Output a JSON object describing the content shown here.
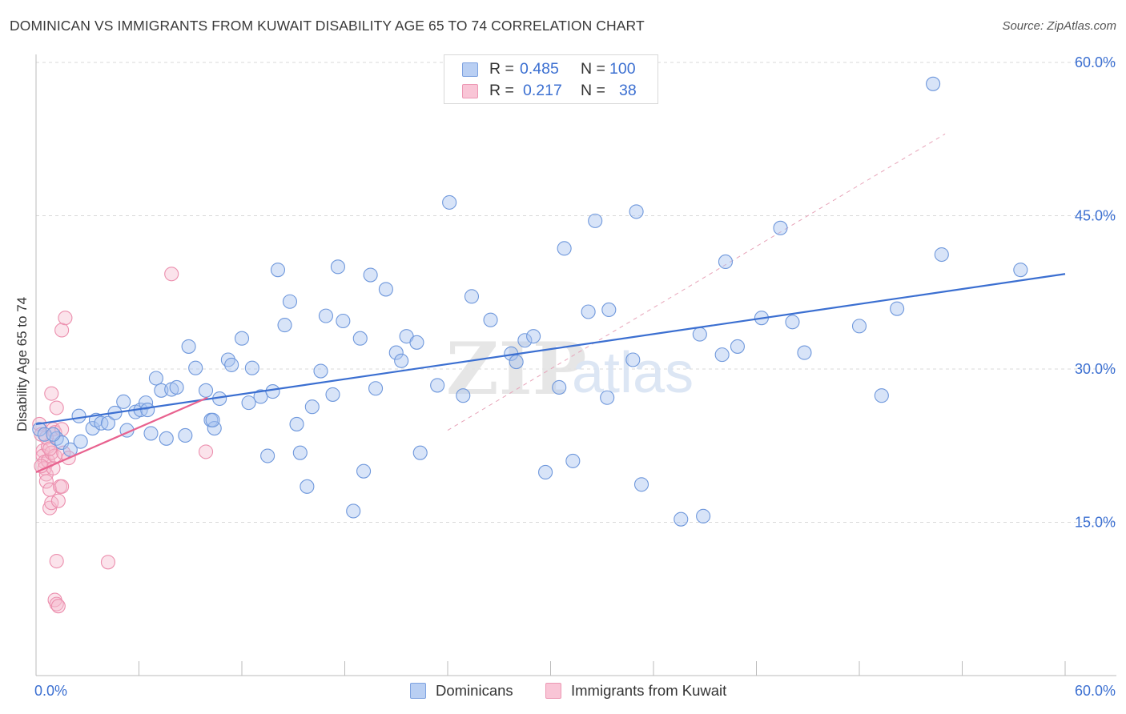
{
  "header": {
    "title": "DOMINICAN VS IMMIGRANTS FROM KUWAIT DISABILITY AGE 65 TO 74 CORRELATION CHART",
    "source": "Source: ZipAtlas.com"
  },
  "legend": {
    "rows": [
      {
        "r_label": "R =",
        "r_value": "0.485",
        "n_label": "N =",
        "n_value": "100"
      },
      {
        "r_label": "R =",
        "r_value": "0.217",
        "n_label": "N =",
        "n_value": "38"
      }
    ]
  },
  "bottom_legend": [
    {
      "label": "Dominicans"
    },
    {
      "label": "Immigrants from Kuwait"
    }
  ],
  "watermark": {
    "zip": "ZIP",
    "atlas": "atlas"
  },
  "colors": {
    "blue": "#3b6fd1",
    "blue_fill": "#a9c4ef",
    "pink": "#e8628f",
    "pink_fill": "#f6b8cc",
    "grid": "#d9d9d9",
    "axis_label": "#3b6fd1"
  },
  "chart_data": {
    "type": "scatter",
    "title": "DOMINICAN VS IMMIGRANTS FROM KUWAIT DISABILITY AGE 65 TO 74 CORRELATION CHART",
    "xlabel": "",
    "ylabel": "Disability Age 65 to 74",
    "xlim": [
      0,
      60
    ],
    "ylim": [
      0,
      60
    ],
    "x_tick_labels": [
      "0.0%",
      "60.0%"
    ],
    "y_ticks": [
      15,
      30,
      45,
      60
    ],
    "y_tick_labels": [
      "15.0%",
      "30.0%",
      "45.0%",
      "60.0%"
    ],
    "series": [
      {
        "name": "Dominicans",
        "r": 0.485,
        "n": 100,
        "trend": {
          "x": [
            0,
            60
          ],
          "y": [
            24.6,
            39.3
          ]
        },
        "identity_line": {
          "x": [
            0,
            60
          ],
          "y": [
            0,
            60
          ]
        },
        "points": [
          [
            0.2,
            24.1
          ],
          [
            0.5,
            23.6
          ],
          [
            1.2,
            23.2
          ],
          [
            1.5,
            22.8
          ],
          [
            2.0,
            22.1
          ],
          [
            2.6,
            22.9
          ],
          [
            2.5,
            25.4
          ],
          [
            3.3,
            24.2
          ],
          [
            3.5,
            25.0
          ],
          [
            3.8,
            24.7
          ],
          [
            4.2,
            24.7
          ],
          [
            4.6,
            25.7
          ],
          [
            5.1,
            26.8
          ],
          [
            5.3,
            24.0
          ],
          [
            5.8,
            25.8
          ],
          [
            6.1,
            26.0
          ],
          [
            6.4,
            26.7
          ],
          [
            6.7,
            23.7
          ],
          [
            7.0,
            29.1
          ],
          [
            7.3,
            27.9
          ],
          [
            7.6,
            23.2
          ],
          [
            7.9,
            28.0
          ],
          [
            8.2,
            28.2
          ],
          [
            8.7,
            23.5
          ],
          [
            8.9,
            32.2
          ],
          [
            9.3,
            30.1
          ],
          [
            9.9,
            27.9
          ],
          [
            10.2,
            25.0
          ],
          [
            10.4,
            24.2
          ],
          [
            10.7,
            27.1
          ],
          [
            11.2,
            30.9
          ],
          [
            11.4,
            30.4
          ],
          [
            12.0,
            33.0
          ],
          [
            12.4,
            26.7
          ],
          [
            12.6,
            30.1
          ],
          [
            13.1,
            27.3
          ],
          [
            13.5,
            21.5
          ],
          [
            13.8,
            27.8
          ],
          [
            14.1,
            39.7
          ],
          [
            14.5,
            34.3
          ],
          [
            14.8,
            36.6
          ],
          [
            15.2,
            24.6
          ],
          [
            15.4,
            21.8
          ],
          [
            15.8,
            18.5
          ],
          [
            16.1,
            26.3
          ],
          [
            16.6,
            29.8
          ],
          [
            16.9,
            35.2
          ],
          [
            17.3,
            27.5
          ],
          [
            17.6,
            40.0
          ],
          [
            17.9,
            34.7
          ],
          [
            18.5,
            16.1
          ],
          [
            18.9,
            33.0
          ],
          [
            19.1,
            20.0
          ],
          [
            19.5,
            39.2
          ],
          [
            19.8,
            28.1
          ],
          [
            20.4,
            37.8
          ],
          [
            21.0,
            31.6
          ],
          [
            21.3,
            30.8
          ],
          [
            21.6,
            33.2
          ],
          [
            22.2,
            32.6
          ],
          [
            22.4,
            21.8
          ],
          [
            23.4,
            28.4
          ],
          [
            24.1,
            46.3
          ],
          [
            24.9,
            27.4
          ],
          [
            25.4,
            37.1
          ],
          [
            26.5,
            34.8
          ],
          [
            27.7,
            31.5
          ],
          [
            28.0,
            30.7
          ],
          [
            28.5,
            32.8
          ],
          [
            29.0,
            33.2
          ],
          [
            29.7,
            19.9
          ],
          [
            30.5,
            28.2
          ],
          [
            30.8,
            41.8
          ],
          [
            31.3,
            21.0
          ],
          [
            32.2,
            35.6
          ],
          [
            32.6,
            44.5
          ],
          [
            33.3,
            27.2
          ],
          [
            33.4,
            35.8
          ],
          [
            34.8,
            30.9
          ],
          [
            35.0,
            45.4
          ],
          [
            35.3,
            18.7
          ],
          [
            37.6,
            15.3
          ],
          [
            38.7,
            33.4
          ],
          [
            38.9,
            15.6
          ],
          [
            40.0,
            31.4
          ],
          [
            40.2,
            40.5
          ],
          [
            40.9,
            32.2
          ],
          [
            42.3,
            35.0
          ],
          [
            43.4,
            43.8
          ],
          [
            44.1,
            34.6
          ],
          [
            44.8,
            31.6
          ],
          [
            48.0,
            34.2
          ],
          [
            49.3,
            27.4
          ],
          [
            50.2,
            35.9
          ],
          [
            52.3,
            57.9
          ],
          [
            52.8,
            41.2
          ],
          [
            57.4,
            39.7
          ],
          [
            1.0,
            23.6
          ],
          [
            6.5,
            26.0
          ],
          [
            10.3,
            25.0
          ]
        ]
      },
      {
        "name": "Immigrants from Kuwait",
        "r": 0.217,
        "n": 38,
        "trend": {
          "x": [
            0,
            10
          ],
          "y": [
            19.9,
            27.2
          ]
        },
        "points": [
          [
            0.2,
            24.6
          ],
          [
            0.3,
            23.6
          ],
          [
            0.4,
            22.0
          ],
          [
            0.4,
            21.5
          ],
          [
            0.5,
            20.9
          ],
          [
            0.5,
            20.3
          ],
          [
            0.6,
            19.7
          ],
          [
            0.6,
            19.0
          ],
          [
            0.7,
            22.4
          ],
          [
            0.7,
            21.0
          ],
          [
            0.8,
            16.4
          ],
          [
            0.8,
            18.2
          ],
          [
            0.9,
            16.9
          ],
          [
            0.9,
            21.8
          ],
          [
            0.9,
            27.6
          ],
          [
            1.0,
            24.1
          ],
          [
            1.0,
            20.3
          ],
          [
            1.1,
            23.8
          ],
          [
            1.1,
            21.5
          ],
          [
            1.2,
            26.2
          ],
          [
            1.2,
            11.2
          ],
          [
            1.1,
            7.4
          ],
          [
            1.2,
            7.0
          ],
          [
            1.3,
            6.8
          ],
          [
            1.3,
            17.1
          ],
          [
            1.4,
            18.5
          ],
          [
            1.5,
            18.5
          ],
          [
            1.5,
            33.8
          ],
          [
            1.5,
            24.1
          ],
          [
            1.6,
            21.8
          ],
          [
            1.7,
            35.0
          ],
          [
            1.9,
            21.3
          ],
          [
            4.2,
            11.1
          ],
          [
            7.9,
            39.3
          ],
          [
            9.9,
            21.9
          ],
          [
            0.3,
            20.5
          ],
          [
            0.6,
            23.3
          ],
          [
            0.8,
            22.2
          ]
        ]
      }
    ]
  }
}
